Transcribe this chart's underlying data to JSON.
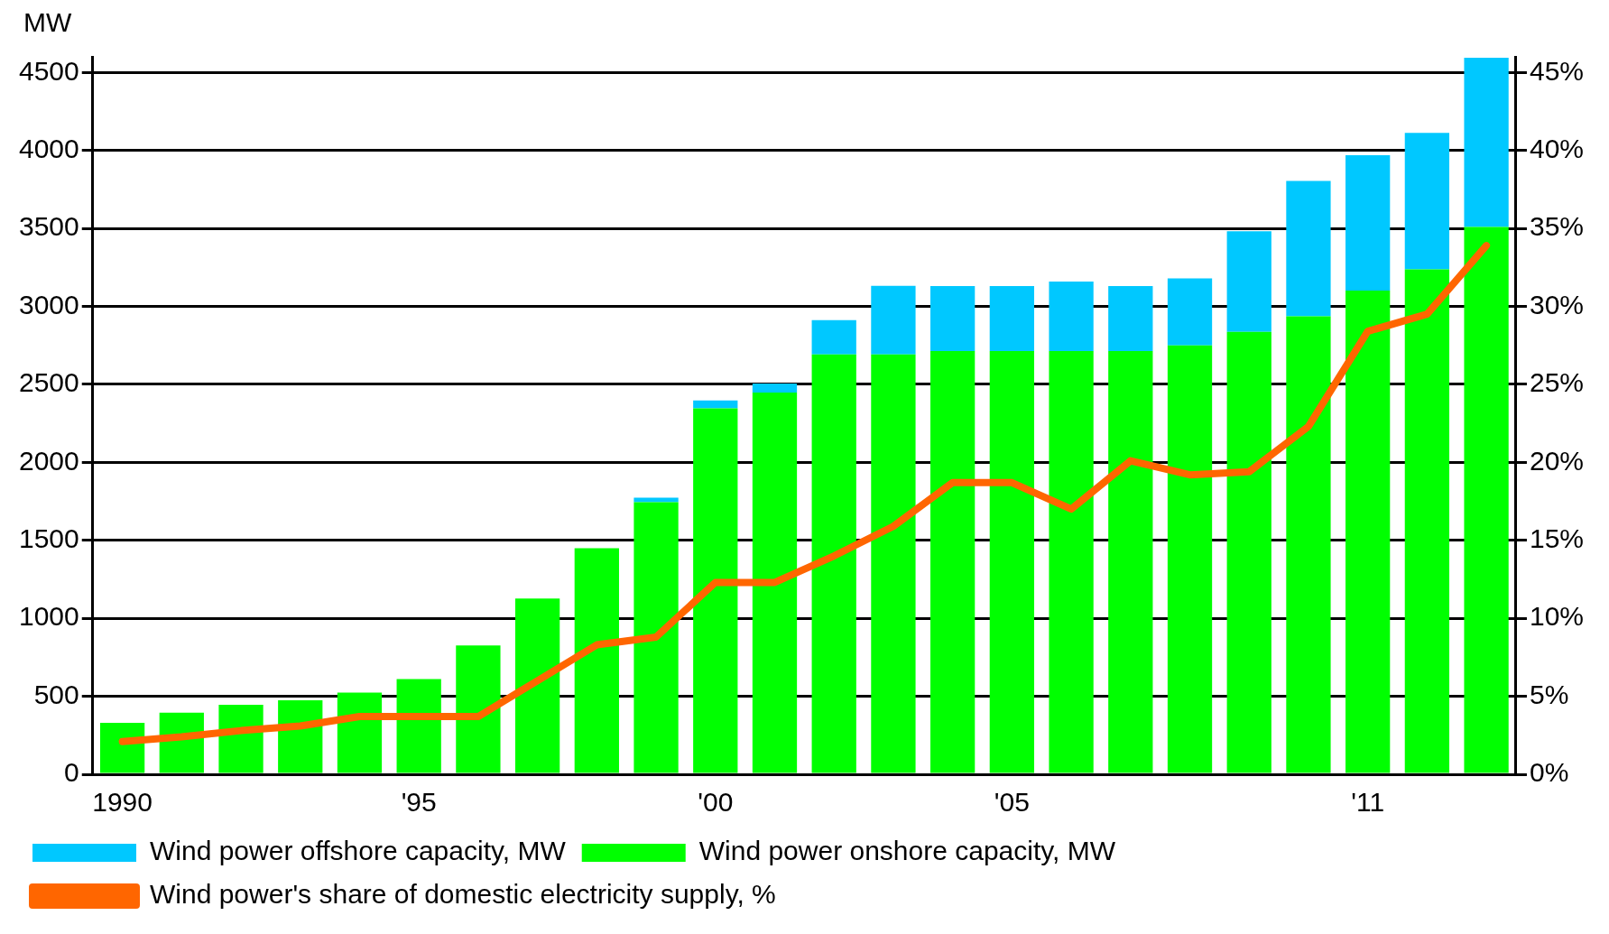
{
  "chart_data": {
    "type": "bar",
    "stacked": true,
    "ylabel": "MW",
    "categories": [
      "1990",
      null,
      null,
      null,
      null,
      "'95",
      null,
      null,
      null,
      null,
      "'00",
      null,
      null,
      null,
      null,
      "'05",
      null,
      null,
      null,
      null,
      null,
      "'11",
      null,
      null
    ],
    "series": [
      {
        "name": "Wind power's share of domestic electricity supply, %",
        "type": "line",
        "axis": "y2",
        "color": "#ff6600",
        "values": [
          2.1,
          2.4,
          2.8,
          3.1,
          3.7,
          3.7,
          3.7,
          6.0,
          8.3,
          8.8,
          12.3,
          12.3,
          14.0,
          15.9,
          18.7,
          18.7,
          17.0,
          20.1,
          19.2,
          19.4,
          22.3,
          28.4,
          29.5,
          33.9
        ]
      },
      {
        "name": "Wind power onshore capacity, MW",
        "color": "#00ff00",
        "values": [
          330,
          395,
          445,
          474,
          524,
          610,
          826,
          1127,
          1450,
          1744,
          2347,
          2448,
          2692,
          2692,
          2714,
          2714,
          2714,
          2714,
          2750,
          2836,
          2936,
          3101,
          3238,
          3510
        ]
      },
      {
        "name": "Wind power offshore capacity, MW",
        "color": "#00c8ff",
        "values": [
          0,
          0,
          0,
          0,
          0,
          0,
          0,
          0,
          0,
          30,
          50,
          57,
          220,
          440,
          416,
          416,
          445,
          416,
          430,
          646,
          869,
          869,
          875,
          1084
        ]
      }
    ],
    "ylim": [
      0,
      4600
    ],
    "yticks": [
      0,
      500,
      1000,
      1500,
      2000,
      2500,
      3000,
      3500,
      4000,
      4500
    ],
    "y2lim": [
      0,
      46
    ],
    "y2ticks": [
      {
        "value": 0,
        "label": "0%"
      },
      {
        "value": 5,
        "label": "5%"
      },
      {
        "value": 10,
        "label": "10%"
      },
      {
        "value": 15,
        "label": "15%"
      },
      {
        "value": 20,
        "label": "20%"
      },
      {
        "value": 25,
        "label": "25%"
      },
      {
        "value": 30,
        "label": "30%"
      },
      {
        "value": 35,
        "label": "35%"
      },
      {
        "value": 40,
        "label": "40%"
      },
      {
        "value": 45,
        "label": "45%"
      }
    ],
    "grid": "y",
    "legend": "bottom",
    "marker": "none",
    "line_style": "solid"
  }
}
